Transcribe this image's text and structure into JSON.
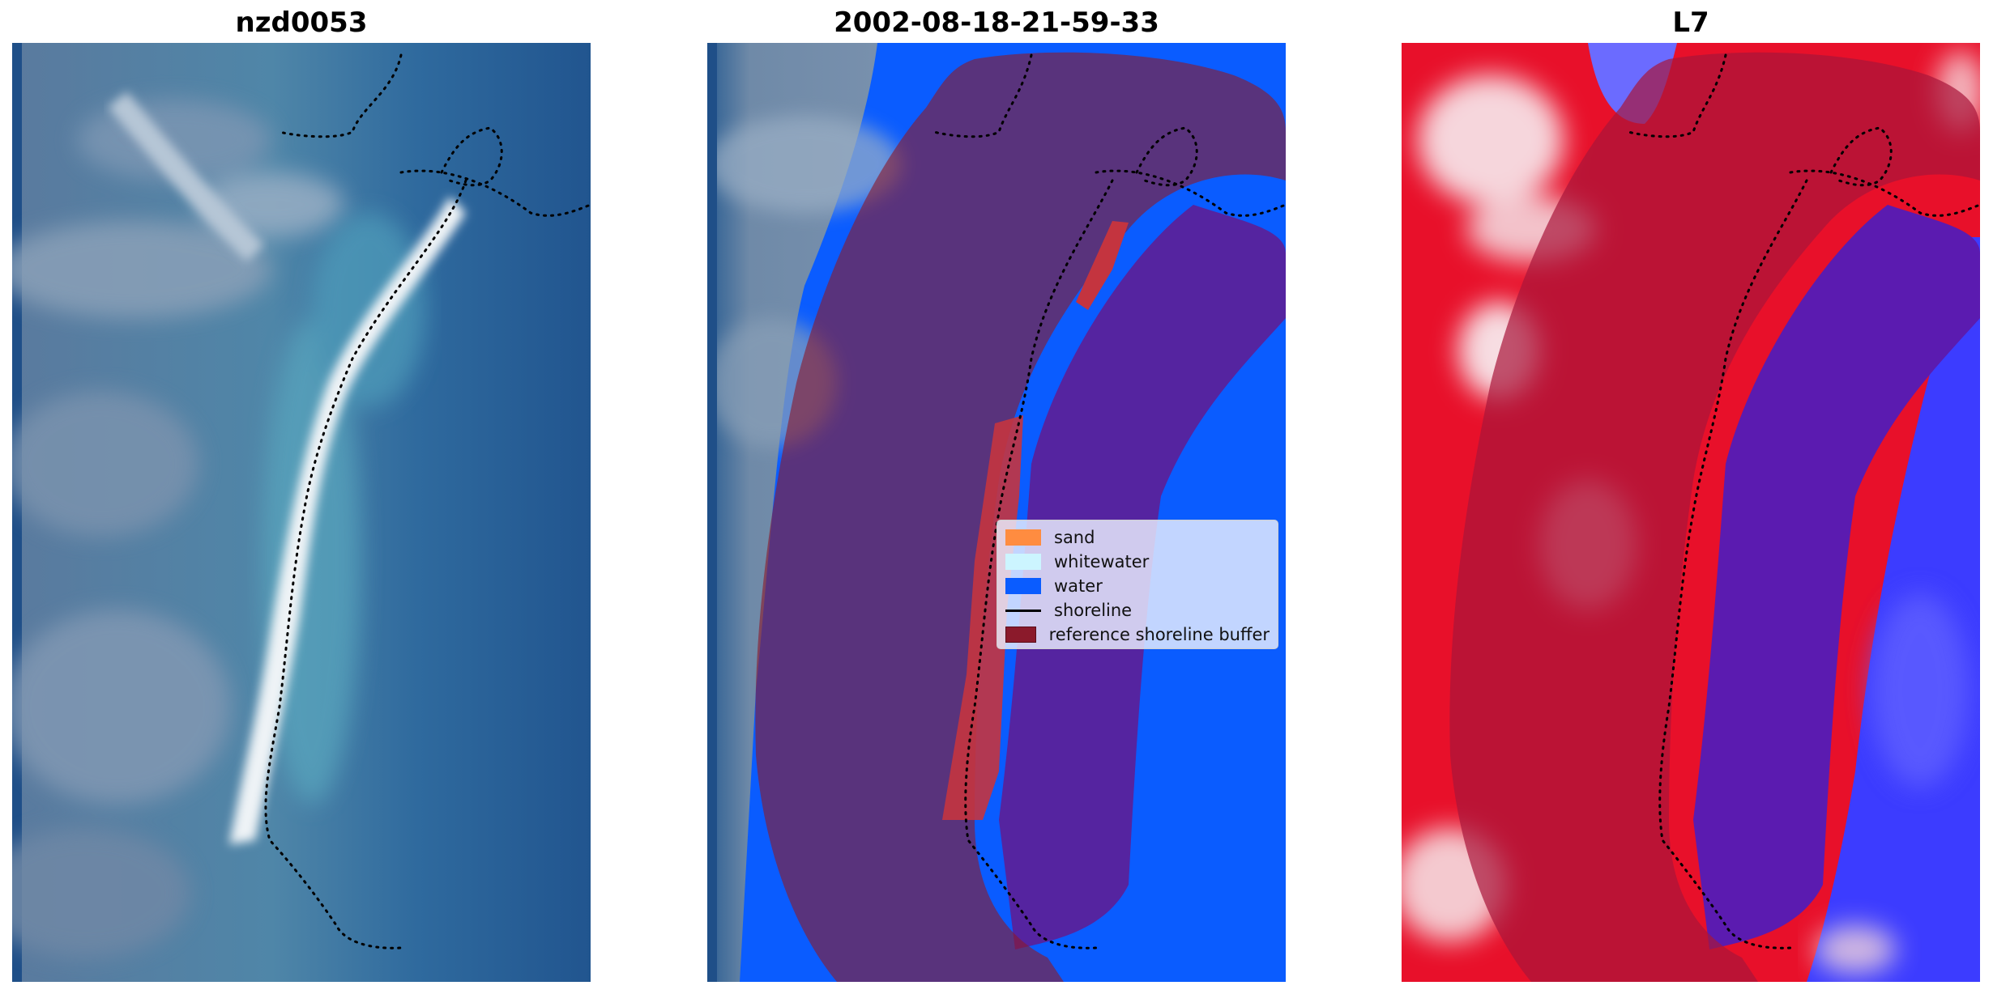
{
  "panels": [
    {
      "title": "nzd0053"
    },
    {
      "title": "2002-08-18-21-59-33"
    },
    {
      "title": "L7"
    }
  ],
  "legend": {
    "items": [
      {
        "label": "sand",
        "color": "#ff8c40"
      },
      {
        "label": "whitewater",
        "color": "#ccf5ff"
      },
      {
        "label": "water",
        "color": "#0a5cff"
      },
      {
        "label": "shoreline",
        "color": "#000000"
      },
      {
        "label": "reference shoreline buffer",
        "color": "#8b1a2b"
      }
    ]
  },
  "colors": {
    "rgb_sea": "#2d5f93",
    "rgb_land": "#6f8aa8",
    "rgb_beach": "#e9eef2",
    "buffer": "#8b1a2b",
    "water_class": "#0a5cff",
    "index_positive": "#e8102a",
    "index_negative": "#3c3cff"
  }
}
